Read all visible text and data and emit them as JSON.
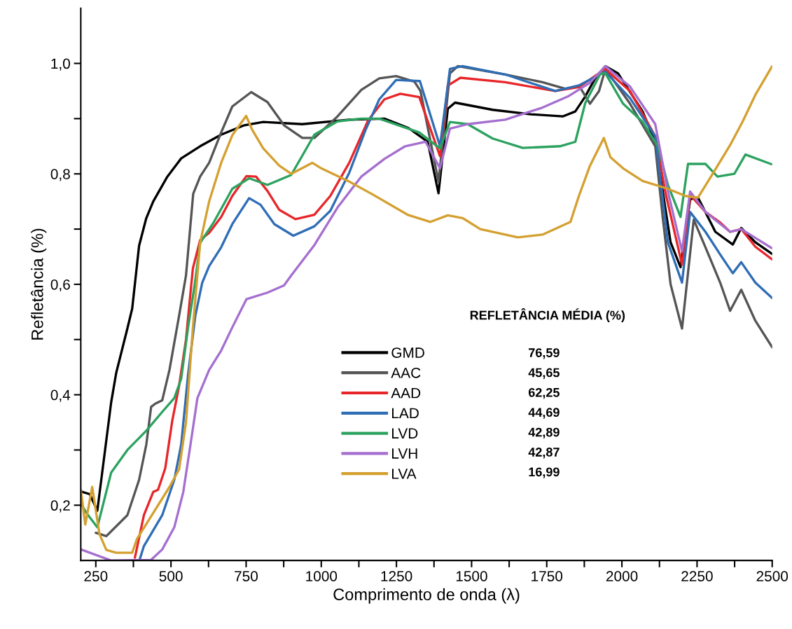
{
  "chart_data": {
    "type": "line",
    "xlabel": "Comprimento de onda (λ)",
    "ylabel": "Refletância (%)",
    "xlim": [
      200,
      2500
    ],
    "ylim": [
      0.1,
      1.1
    ],
    "xticks": [
      250,
      {
        "value": 375,
        "label": null
      },
      500,
      {
        "value": 625,
        "label": null
      },
      750,
      {
        "value": 875,
        "label": null
      },
      1000,
      {
        "value": 1125,
        "label": null
      },
      1250,
      {
        "value": 1375,
        "label": null
      },
      1500,
      {
        "value": 1625,
        "label": null
      },
      1750,
      {
        "value": 1875,
        "label": null
      },
      2000,
      {
        "value": 2125,
        "label": null
      },
      2250,
      {
        "value": 2375,
        "label": null
      },
      2500
    ],
    "yticks": [
      {
        "value": 0.2,
        "label": "0,2"
      },
      {
        "value": 0.3,
        "label": null
      },
      {
        "value": 0.4,
        "label": "0,4"
      },
      {
        "value": 0.5,
        "label": null
      },
      {
        "value": 0.6,
        "label": "0,6"
      },
      {
        "value": 0.7,
        "label": null
      },
      {
        "value": 0.8,
        "label": "0,8"
      },
      {
        "value": 0.9,
        "label": null
      },
      {
        "value": 1.0,
        "label": "1,0"
      }
    ],
    "grid": false,
    "legend": "bottom",
    "marker": "none",
    "line_style": "solid",
    "legend_title": "REFLETÂNCIA MÉDIA (%)",
    "value_labels": [
      "76,59",
      "45,65",
      "62,25",
      "44,69",
      "42,89",
      "42,87",
      "16,99"
    ],
    "series": [
      {
        "name": "GMD",
        "color": "#000000",
        "x": [
          200,
          230,
          255,
          301,
          318,
          355,
          371,
          394,
          418,
          441,
          488,
          534,
          597,
          667,
          744,
          807,
          937,
          1093,
          1210,
          1290,
          1354,
          1390,
          1421,
          1445,
          1570,
          1696,
          1803,
          1845,
          1878,
          1910,
          1945,
          1987,
          2069,
          2111,
          2136,
          2162,
          2195,
          2227,
          2253,
          2311,
          2369,
          2397,
          2444,
          2500
        ],
        "values": [
          0.225,
          0.22,
          0.19,
          0.386,
          0.44,
          0.52,
          0.556,
          0.67,
          0.72,
          0.75,
          0.795,
          0.828,
          0.85,
          0.871,
          0.888,
          0.894,
          0.89,
          0.898,
          0.9,
          0.883,
          0.858,
          0.765,
          0.918,
          0.929,
          0.916,
          0.908,
          0.904,
          0.913,
          0.94,
          0.972,
          0.995,
          0.982,
          0.913,
          0.858,
          0.768,
          0.676,
          0.631,
          0.754,
          0.757,
          0.695,
          0.672,
          0.702,
          0.676,
          0.655
        ]
      },
      {
        "name": "AAC",
        "color": "#555555",
        "x": [
          250,
          285,
          355,
          394,
          418,
          434,
          448,
          471,
          495,
          527,
          550,
          574,
          597,
          627,
          667,
          704,
          767,
          821,
          876,
          937,
          977,
          1054,
          1133,
          1193,
          1249,
          1310,
          1330,
          1390,
          1428,
          1454,
          1612,
          1736,
          1813,
          1857,
          1894,
          1924,
          1945,
          2027,
          2111,
          2136,
          2162,
          2200,
          2239,
          2278,
          2327,
          2360,
          2397,
          2444,
          2500
        ],
        "values": [
          0.15,
          0.144,
          0.182,
          0.246,
          0.31,
          0.378,
          0.384,
          0.39,
          0.445,
          0.543,
          0.616,
          0.764,
          0.795,
          0.82,
          0.875,
          0.922,
          0.948,
          0.93,
          0.888,
          0.865,
          0.865,
          0.904,
          0.952,
          0.973,
          0.977,
          0.967,
          0.95,
          0.786,
          0.982,
          0.995,
          0.98,
          0.966,
          0.954,
          0.96,
          0.927,
          0.95,
          0.99,
          0.927,
          0.85,
          0.72,
          0.6,
          0.52,
          0.717,
          0.667,
          0.603,
          0.552,
          0.59,
          0.534,
          0.486
        ]
      },
      {
        "name": "AAD",
        "color": "#e8262a",
        "x": [
          380,
          410,
          441,
          457,
          481,
          504,
          527,
          550,
          565,
          573,
          597,
          627,
          667,
          704,
          751,
          783,
          821,
          860,
          914,
          977,
          1030,
          1093,
          1156,
          1210,
          1263,
          1326,
          1395,
          1421,
          1463,
          1612,
          1778,
          1857,
          1945,
          2027,
          2111,
          2144,
          2200,
          2227,
          2278,
          2327,
          2360,
          2397,
          2444,
          2500
        ],
        "values": [
          0.105,
          0.182,
          0.224,
          0.228,
          0.267,
          0.352,
          0.416,
          0.5,
          0.585,
          0.629,
          0.68,
          0.693,
          0.722,
          0.76,
          0.796,
          0.795,
          0.769,
          0.735,
          0.718,
          0.726,
          0.76,
          0.82,
          0.897,
          0.935,
          0.945,
          0.939,
          0.832,
          0.96,
          0.974,
          0.966,
          0.95,
          0.957,
          0.99,
          0.95,
          0.868,
          0.768,
          0.636,
          0.762,
          0.731,
          0.712,
          0.695,
          0.7,
          0.668,
          0.645
        ]
      },
      {
        "name": "LAD",
        "color": "#2f6db5",
        "x": [
          395,
          410,
          471,
          511,
          534,
          557,
          581,
          604,
          627,
          667,
          704,
          760,
          798,
          844,
          907,
          977,
          1030,
          1093,
          1147,
          1193,
          1249,
          1328,
          1395,
          1428,
          1470,
          1612,
          1778,
          1857,
          1945,
          2027,
          2111,
          2153,
          2200,
          2227,
          2278,
          2327,
          2369,
          2397,
          2444,
          2500
        ],
        "values": [
          0.1,
          0.126,
          0.182,
          0.246,
          0.31,
          0.437,
          0.543,
          0.603,
          0.633,
          0.667,
          0.709,
          0.756,
          0.744,
          0.709,
          0.688,
          0.705,
          0.733,
          0.802,
          0.879,
          0.935,
          0.97,
          0.968,
          0.85,
          0.99,
          0.995,
          0.98,
          0.95,
          0.96,
          0.985,
          0.937,
          0.868,
          0.676,
          0.603,
          0.731,
          0.695,
          0.654,
          0.62,
          0.64,
          0.603,
          0.575
        ]
      },
      {
        "name": "LVD",
        "color": "#2ca25f",
        "x": [
          200,
          220,
          255,
          301,
          355,
          418,
          471,
          511,
          534,
          557,
          581,
          597,
          643,
          704,
          760,
          821,
          900,
          977,
          1054,
          1133,
          1193,
          1326,
          1395,
          1428,
          1487,
          1570,
          1670,
          1794,
          1845,
          1878,
          1929,
          1945,
          2004,
          2069,
          2120,
          2153,
          2195,
          2220,
          2278,
          2318,
          2374,
          2411,
          2500
        ],
        "values": [
          0.203,
          0.185,
          0.16,
          0.259,
          0.3,
          0.335,
          0.369,
          0.394,
          0.429,
          0.522,
          0.607,
          0.675,
          0.713,
          0.773,
          0.792,
          0.78,
          0.798,
          0.871,
          0.895,
          0.9,
          0.9,
          0.875,
          0.846,
          0.894,
          0.89,
          0.864,
          0.847,
          0.85,
          0.858,
          0.928,
          0.982,
          0.982,
          0.927,
          0.894,
          0.85,
          0.78,
          0.722,
          0.818,
          0.818,
          0.795,
          0.8,
          0.835,
          0.817
        ]
      },
      {
        "name": "LVH",
        "color": "#a56fcf",
        "x": [
          200,
          300,
          434,
          471,
          511,
          541,
          565,
          588,
          627,
          667,
          704,
          751,
          821,
          876,
          900,
          977,
          1054,
          1133,
          1210,
          1279,
          1347,
          1395,
          1428,
          1487,
          1612,
          1736,
          1820,
          1894,
          1945,
          2027,
          2111,
          2153,
          2200,
          2227,
          2278,
          2360,
          2397,
          2500
        ],
        "values": [
          0.12,
          0.1,
          0.101,
          0.12,
          0.16,
          0.224,
          0.31,
          0.394,
          0.445,
          0.48,
          0.522,
          0.573,
          0.585,
          0.598,
          0.616,
          0.671,
          0.739,
          0.795,
          0.827,
          0.85,
          0.858,
          0.81,
          0.882,
          0.89,
          0.898,
          0.92,
          0.94,
          0.965,
          0.995,
          0.958,
          0.89,
          0.768,
          0.66,
          0.768,
          0.731,
          0.695,
          0.7,
          0.665
        ]
      },
      {
        "name": "LVA",
        "color": "#d4a030",
        "x": [
          200,
          215,
          238,
          262,
          285,
          318,
          371,
          387,
          434,
          495,
          527,
          550,
          573,
          597,
          627,
          667,
          704,
          750,
          770,
          807,
          860,
          900,
          970,
          1000,
          1093,
          1170,
          1287,
          1363,
          1421,
          1470,
          1529,
          1654,
          1736,
          1829,
          1857,
          1894,
          1940,
          1962,
          2004,
          2069,
          2153,
          2211,
          2253,
          2302,
          2360,
          2402,
          2444,
          2500
        ],
        "values": [
          0.228,
          0.165,
          0.233,
          0.148,
          0.119,
          0.114,
          0.114,
          0.139,
          0.18,
          0.233,
          0.265,
          0.35,
          0.522,
          0.675,
          0.75,
          0.82,
          0.87,
          0.905,
          0.88,
          0.846,
          0.815,
          0.8,
          0.82,
          0.81,
          0.786,
          0.763,
          0.726,
          0.713,
          0.725,
          0.72,
          0.7,
          0.685,
          0.69,
          0.713,
          0.76,
          0.815,
          0.865,
          0.83,
          0.81,
          0.787,
          0.773,
          0.76,
          0.757,
          0.8,
          0.852,
          0.895,
          0.943,
          0.995
        ]
      }
    ]
  }
}
